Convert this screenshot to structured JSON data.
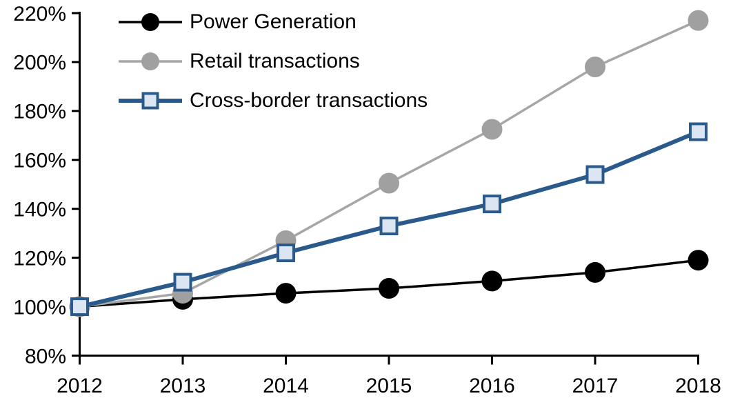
{
  "chart_data": {
    "type": "line",
    "title": "",
    "xlabel": "",
    "ylabel": "",
    "categories": [
      "2012",
      "2013",
      "2014",
      "2015",
      "2016",
      "2017",
      "2018"
    ],
    "series": [
      {
        "name": "Power Generation",
        "values": [
          100,
          103,
          105.5,
          107.5,
          110.5,
          114,
          119
        ],
        "color": "#000000",
        "marker": "circle",
        "marker_fill": "#000000",
        "line_width": 3.5
      },
      {
        "name": "Retail transactions",
        "values": [
          100,
          105.5,
          127,
          150.5,
          172.5,
          198,
          217
        ],
        "color": "#A6A6A6",
        "marker": "circle",
        "marker_fill": "#A0A0A0",
        "line_width": 3.5
      },
      {
        "name": "Cross-border transactions",
        "values": [
          100,
          110,
          122,
          133,
          142,
          154,
          171.5
        ],
        "color": "#2A5A8C",
        "marker": "square",
        "marker_fill": "#DCE6F2",
        "line_width": 6
      }
    ],
    "ylim": [
      80,
      220
    ],
    "ytick_step": 20,
    "ytick_labels": [
      "80%",
      "100%",
      "120%",
      "140%",
      "160%",
      "180%",
      "200%",
      "220%"
    ],
    "grid": false,
    "legend_position": "top-left",
    "axis_color": "#000000"
  }
}
